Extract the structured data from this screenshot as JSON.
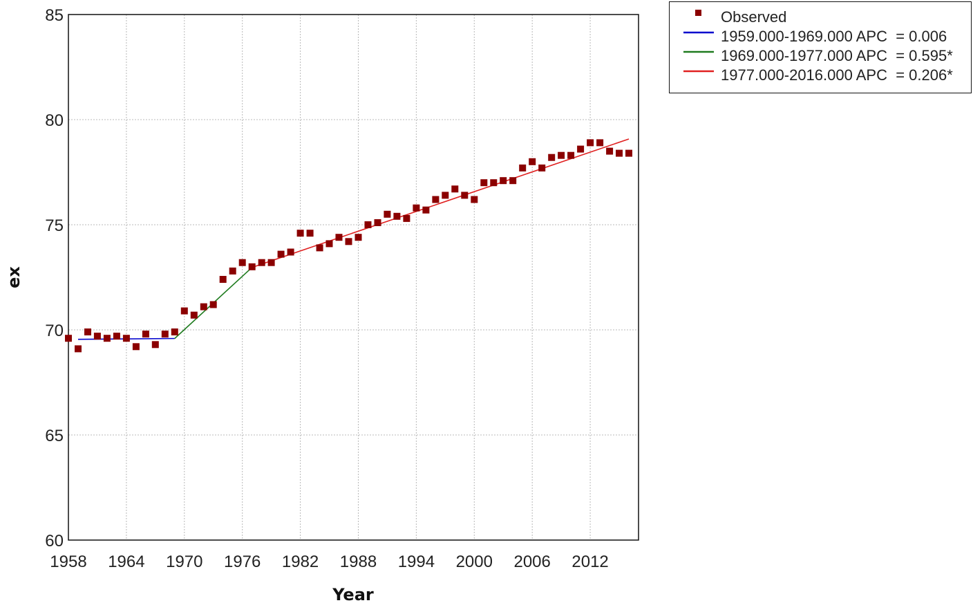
{
  "chart_data": {
    "type": "scatter",
    "xlabel": "Year",
    "ylabel": "ex",
    "xlim": [
      1958,
      2017
    ],
    "ylim": [
      60,
      85
    ],
    "x_ticks": [
      "1958",
      "1964",
      "1970",
      "1976",
      "1982",
      "1988",
      "1994",
      "2000",
      "2006",
      "2012"
    ],
    "y_ticks": [
      "85",
      "80",
      "75",
      "70",
      "65",
      "60"
    ],
    "grid": true,
    "legend_position": "top-right, outside plot",
    "observed": {
      "name": "Observed",
      "color": "#8b0000",
      "x": [
        1958,
        1959,
        1960,
        1961,
        1962,
        1963,
        1964,
        1965,
        1966,
        1967,
        1968,
        1969,
        1970,
        1971,
        1972,
        1973,
        1974,
        1975,
        1976,
        1977,
        1978,
        1979,
        1980,
        1981,
        1982,
        1983,
        1984,
        1985,
        1986,
        1987,
        1988,
        1989,
        1990,
        1991,
        1992,
        1993,
        1994,
        1995,
        1996,
        1997,
        1998,
        1999,
        2000,
        2001,
        2002,
        2003,
        2004,
        2005,
        2006,
        2007,
        2008,
        2009,
        2010,
        2011,
        2012,
        2013,
        2014,
        2015,
        2016
      ],
      "y": [
        69.6,
        69.1,
        69.9,
        69.7,
        69.6,
        69.7,
        69.6,
        69.2,
        69.8,
        69.3,
        69.8,
        69.9,
        70.9,
        70.7,
        71.1,
        71.2,
        72.4,
        72.8,
        73.2,
        73.0,
        73.2,
        73.2,
        73.6,
        73.7,
        74.6,
        74.6,
        73.9,
        74.1,
        74.4,
        74.2,
        74.4,
        75.0,
        75.1,
        75.5,
        75.4,
        75.3,
        75.8,
        75.7,
        76.2,
        76.4,
        76.7,
        76.4,
        76.2,
        77.0,
        77.0,
        77.1,
        77.1,
        77.7,
        78.0,
        77.7,
        78.2,
        78.3,
        78.3,
        78.6,
        78.9,
        78.9,
        78.5,
        78.4,
        78.4
      ]
    },
    "series": [
      {
        "name": "1959.000-1969.000 APC  = 0.006",
        "color": "#0000cd",
        "x": [
          1959,
          1969
        ],
        "y": [
          69.55,
          69.59
        ]
      },
      {
        "name": "1969.000-1977.000 APC  = 0.595*",
        "color": "#1e7b1e",
        "x": [
          1969,
          1977
        ],
        "y": [
          69.59,
          72.97
        ]
      },
      {
        "name": "1977.000-2016.000 APC  = 0.206*",
        "color": "#e02020",
        "x": [
          1977,
          2016
        ],
        "y": [
          72.97,
          79.08
        ]
      }
    ]
  },
  "legend": {
    "observed_label": "Observed",
    "line1_label": "1959.000-1969.000 APC  = 0.006",
    "line2_label": "1969.000-1977.000 APC  = 0.595*",
    "line3_label": "1977.000-2016.000 APC  = 0.206*"
  }
}
